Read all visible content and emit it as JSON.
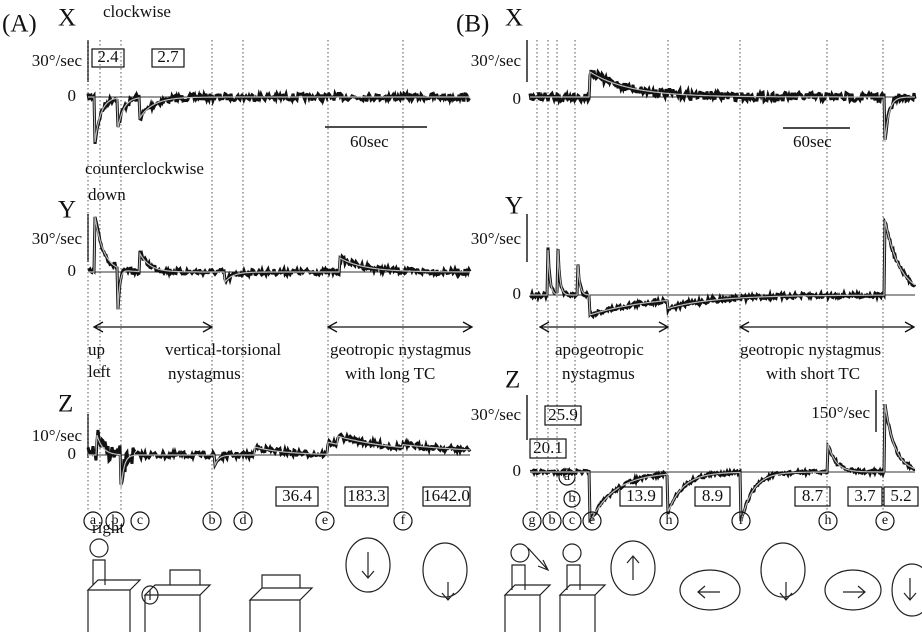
{
  "panel_a": {
    "label": "(A)",
    "x_trace": {
      "label": "X",
      "scale": "30°/sec",
      "zero": "0",
      "top_note": "clockwise",
      "bottom_note": "counterclockwise",
      "time_bar": "60sec",
      "time_constants": [
        "2.4",
        "2.7"
      ]
    },
    "y_trace": {
      "label": "Y",
      "scale": "30°/sec",
      "zero": "0",
      "top_note": "down",
      "bottom_note": "up"
    },
    "z_trace": {
      "label": "Z",
      "scale": "10°/sec",
      "zero": "0",
      "top_note": "left",
      "bottom_note": "right",
      "time_constants": [
        "36.4",
        "183.3",
        "1642.0"
      ]
    },
    "phases": [
      {
        "line1": "vertical-torsional",
        "line2": "nystagmus"
      },
      {
        "line1": "geotropic nystagmus",
        "line2": "with long TC"
      }
    ],
    "markers": [
      "a",
      "b",
      "c",
      "b",
      "d",
      "e",
      "f"
    ]
  },
  "panel_b": {
    "label": "(B)",
    "x_trace": {
      "label": "X",
      "scale": "30°/sec",
      "zero": "0",
      "time_bar": "60sec"
    },
    "y_trace": {
      "label": "Y",
      "scale": "30°/sec",
      "zero": "0"
    },
    "z_trace": {
      "label": "Z",
      "scale": "30°/sec",
      "scale_large": "150°/sec",
      "zero": "0",
      "time_constants": [
        "25.9",
        "20.1",
        "13.9",
        "8.9",
        "8.7",
        "3.7",
        "5.2"
      ],
      "inline_markers": [
        "a",
        "b"
      ]
    },
    "phases": [
      {
        "line1": "apogeotropic",
        "line2": "nystagmus"
      },
      {
        "line1": "geotropic nystagmus",
        "line2": "with short TC"
      }
    ],
    "markers": [
      "g",
      "b",
      "c",
      "e",
      "h",
      "f",
      "h",
      "e"
    ]
  }
}
